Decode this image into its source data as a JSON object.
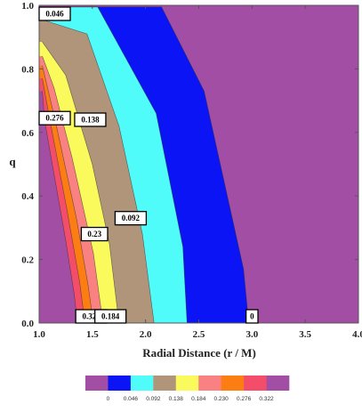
{
  "chart_data": {
    "type": "contour",
    "xlabel": "Radial Distance (r / M)",
    "ylabel": "q",
    "xlim": [
      1.0,
      4.0
    ],
    "ylim": [
      0.0,
      1.0
    ],
    "x_ticks": [
      "1.0",
      "1.5",
      "2.0",
      "2.5",
      "3.0",
      "3.5",
      "4.0"
    ],
    "y_ticks": [
      "0.0",
      "0.2",
      "0.4",
      "0.6",
      "0.8",
      "1.0"
    ],
    "levels": [
      0,
      0.046,
      0.092,
      0.138,
      0.184,
      0.23,
      0.276,
      0.322
    ],
    "colorbar_labels": [
      "0",
      "0.046",
      "0.092",
      "0.138",
      "0.184",
      "0.230",
      "0.276",
      "0.322"
    ],
    "colors": [
      "#a24ea5",
      "#0a14f5",
      "#4ffcfa",
      "#b0957b",
      "#fafa5c",
      "#fa8181",
      "#fc7d12",
      "#f44d6a",
      "#a24ea5"
    ],
    "grid": false,
    "contour_labels": [
      {
        "text": "0.046",
        "x": 1.02,
        "y": 0.975
      },
      {
        "text": "0.276",
        "x": 1.09,
        "y": 0.645
      },
      {
        "text": "0.138",
        "x": 1.48,
        "y": 0.64
      },
      {
        "text": "0.092",
        "x": 1.86,
        "y": 0.33
      },
      {
        "text": "0.23",
        "x": 1.52,
        "y": 0.28
      },
      {
        "text": "0.322",
        "x": 1.49,
        "y": 0.0
      },
      {
        "text": "0.184",
        "x": 1.67,
        "y": 0.0
      },
      {
        "text": "0",
        "x": 3.0,
        "y": 0.0
      }
    ],
    "contour_lines": [
      {
        "level": 0.322,
        "pts": [
          [
            1.03,
            0.73
          ],
          [
            1.05,
            0.64
          ],
          [
            1.15,
            0.45
          ],
          [
            1.25,
            0.26
          ],
          [
            1.33,
            0.09
          ],
          [
            1.36,
            0.0
          ]
        ]
      },
      {
        "level": 0.276,
        "pts": [
          [
            1.03,
            0.77
          ],
          [
            1.1,
            0.64
          ],
          [
            1.26,
            0.36
          ],
          [
            1.38,
            0.13
          ],
          [
            1.43,
            0.0
          ]
        ]
      },
      {
        "level": 0.23,
        "pts": [
          [
            1.03,
            0.81
          ],
          [
            1.15,
            0.64
          ],
          [
            1.35,
            0.33
          ],
          [
            1.46,
            0.12
          ],
          [
            1.51,
            0.0
          ]
        ]
      },
      {
        "level": 0.184,
        "pts": [
          [
            1.03,
            0.84
          ],
          [
            1.14,
            0.74
          ],
          [
            1.31,
            0.52
          ],
          [
            1.51,
            0.22
          ],
          [
            1.6,
            0.0
          ]
        ]
      },
      {
        "level": 0.138,
        "pts": [
          [
            1.03,
            0.885
          ],
          [
            1.25,
            0.78
          ],
          [
            1.5,
            0.5
          ],
          [
            1.66,
            0.25
          ],
          [
            1.75,
            0.0
          ]
        ]
      },
      {
        "level": 0.092,
        "pts": [
          [
            1.03,
            0.955
          ],
          [
            1.45,
            0.91
          ],
          [
            1.75,
            0.62
          ],
          [
            1.97,
            0.28
          ],
          [
            2.08,
            0.0
          ]
        ]
      },
      {
        "level": 0.046,
        "pts": [
          [
            1.03,
            0.995
          ],
          [
            1.55,
            0.995
          ],
          [
            2.1,
            0.66
          ],
          [
            2.35,
            0.24
          ],
          [
            2.39,
            0.0
          ]
        ]
      },
      {
        "level": 0,
        "pts": [
          [
            1.03,
            0.995
          ],
          [
            2.15,
            0.995
          ],
          [
            2.55,
            0.73
          ],
          [
            2.92,
            0.17
          ],
          [
            2.97,
            0.0
          ]
        ]
      }
    ]
  }
}
